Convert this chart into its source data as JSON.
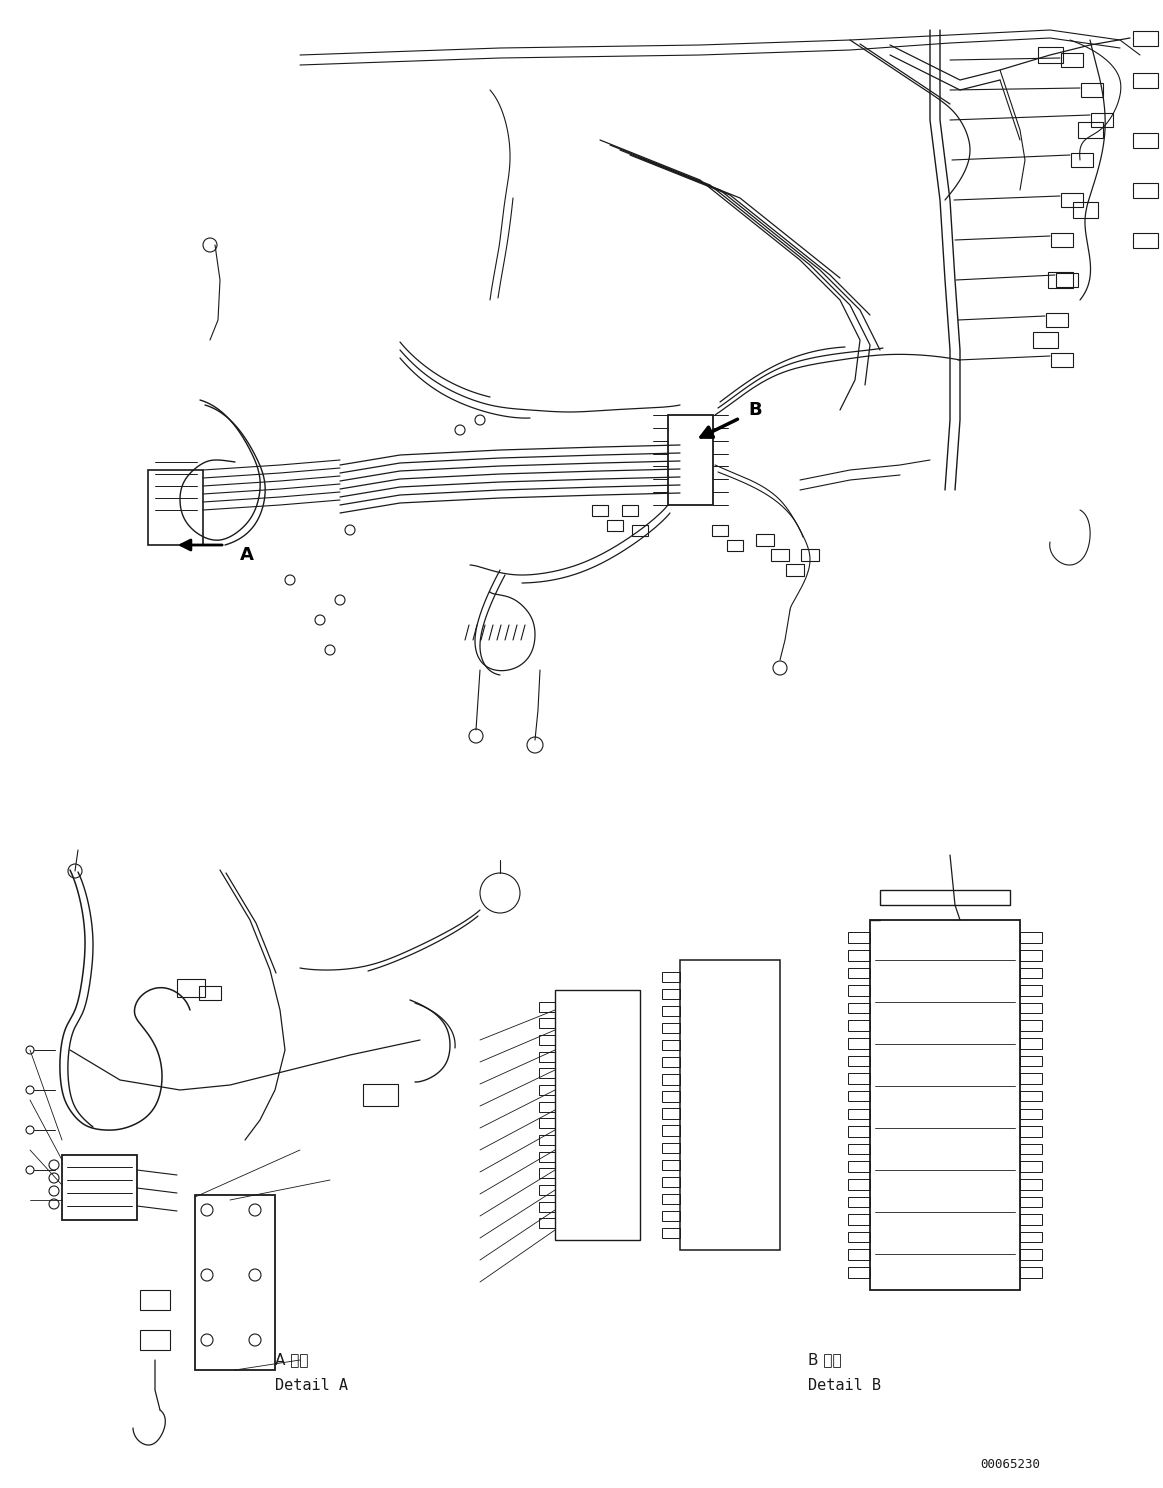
{
  "background_color": "#ffffff",
  "line_color": "#1a1a1a",
  "figure_width": 11.63,
  "figure_height": 14.88,
  "dpi": 100,
  "label_A_japanese": "A 詳細",
  "label_A_english": "Detail A",
  "label_B_japanese": "B 詳細",
  "label_B_english": "Detail B",
  "part_number": "00065230",
  "font_size_labels": 11,
  "font_size_part": 9,
  "font_size_arrows": 13
}
